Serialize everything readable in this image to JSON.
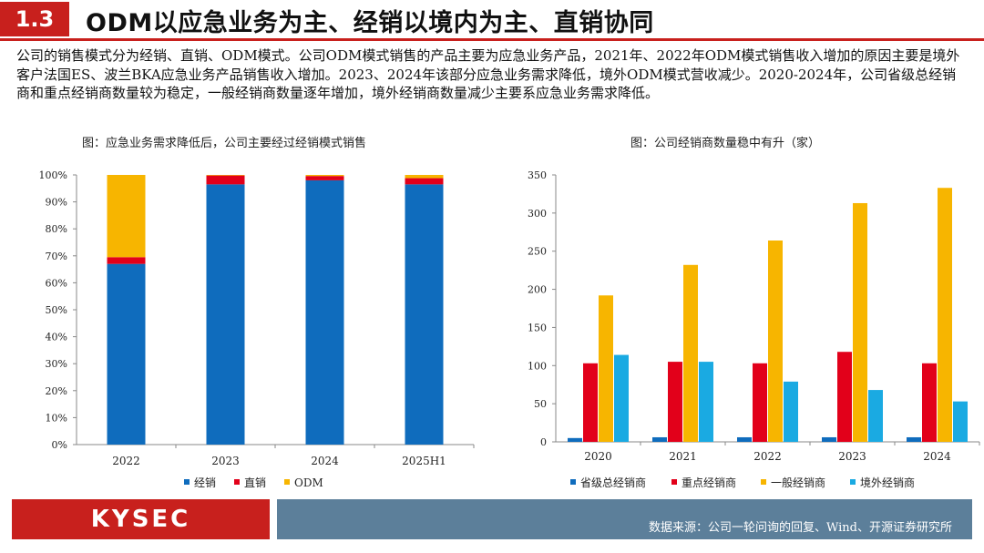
{
  "header": {
    "section_number": "1.3",
    "title": "ODM以应急业务为主、经销以境内为主、直销协同",
    "accent_color": "#c8201d"
  },
  "intro_text": "公司的销售模式分为经销、直销、ODM模式。公司ODM模式销售的产品主要为应急业务产品，2021年、2022年ODM模式销售收入增加的原因主要是境外客户法国ES、波兰BKA应急业务产品销售收入增加。2023、2024年该部分应急业务需求降低，境外ODM模式营收减少。2020-2024年，公司省级总经销商和重点经销商数量较为稳定，一般经销商数量逐年增加，境外经销商数量减少主要系应急业务需求降低。",
  "chart_data": [
    {
      "type": "bar",
      "stacked": true,
      "title": "图：应急业务需求降低后，公司主要经过经销模式销售",
      "categories": [
        "2022",
        "2023",
        "2024",
        "2025H1"
      ],
      "series": [
        {
          "name": "经销",
          "color": "#0f6cbd",
          "values": [
            67,
            96.5,
            98,
            96.5
          ]
        },
        {
          "name": "直销",
          "color": "#e2001a",
          "values": [
            2.5,
            3.3,
            1.6,
            2.3
          ]
        },
        {
          "name": "ODM",
          "color": "#f7b500",
          "values": [
            30.5,
            0.2,
            0.4,
            1.2
          ]
        }
      ],
      "ylim": [
        0,
        100
      ],
      "yticks": [
        "0%",
        "10%",
        "20%",
        "30%",
        "40%",
        "50%",
        "60%",
        "70%",
        "80%",
        "90%",
        "100%"
      ],
      "legend": "bottom",
      "grid": false
    },
    {
      "type": "bar",
      "title": "图：公司经销商数量稳中有升（家）",
      "categories": [
        "2020",
        "2021",
        "2022",
        "2023",
        "2024"
      ],
      "series": [
        {
          "name": "省级总经销商",
          "color": "#0f6cbd",
          "values": [
            5,
            6,
            6,
            6,
            6
          ]
        },
        {
          "name": "重点经销商",
          "color": "#e2001a",
          "values": [
            103,
            105,
            103,
            118,
            103
          ]
        },
        {
          "name": "一般经销商",
          "color": "#f7b500",
          "values": [
            192,
            232,
            264,
            313,
            333
          ]
        },
        {
          "name": "境外经销商",
          "color": "#1aaae2",
          "values": [
            114,
            105,
            79,
            68,
            53
          ]
        }
      ],
      "ylim": [
        0,
        350
      ],
      "yticks": [
        "0",
        "50",
        "100",
        "150",
        "200",
        "250",
        "300",
        "350"
      ],
      "legend": "bottom",
      "grid": false
    }
  ],
  "footer": {
    "logo_text": "KYSEC",
    "source": "数据来源：公司一轮问询的回复、Wind、开源证券研究所",
    "bar_color": "#5c7f9a"
  }
}
